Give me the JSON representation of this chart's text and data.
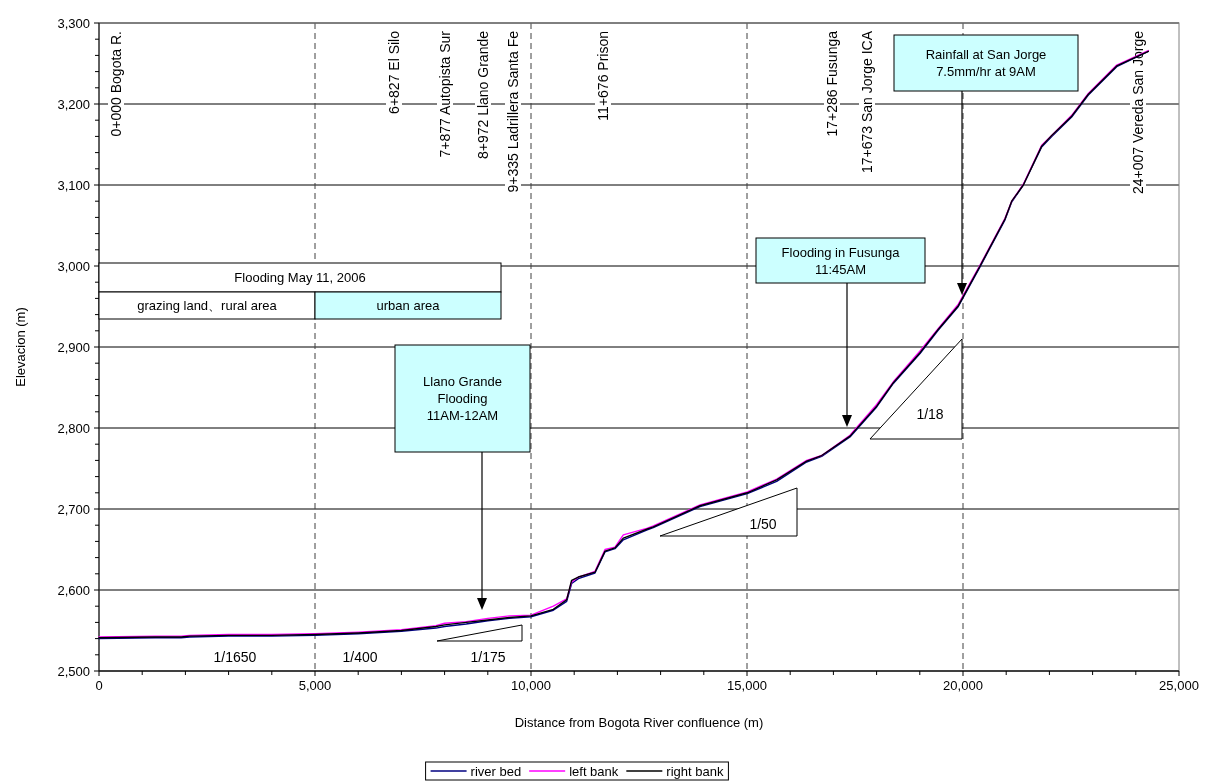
{
  "chart_data": {
    "type": "line",
    "xlabel": "Distance from Bogota River confluence (m)",
    "ylabel": "Elevacion (m)",
    "xlim": [
      0,
      25000
    ],
    "ylim": [
      2500,
      3300
    ],
    "xticks": [
      0,
      {
        "value": 5000,
        "label": "5,000"
      },
      {
        "value": 10000,
        "label": "10,000"
      },
      {
        "value": 15000,
        "label": "15,000"
      },
      {
        "value": 20000,
        "label": "20,000"
      },
      {
        "value": 25000,
        "label": "25,000"
      }
    ],
    "yticks": [
      {
        "value": 2500,
        "label": "2,500"
      },
      {
        "value": 2600,
        "label": "2,600"
      },
      {
        "value": 2700,
        "label": "2,700"
      },
      {
        "value": 2800,
        "label": "2,800"
      },
      {
        "value": 2900,
        "label": "2,900"
      },
      {
        "value": 3000,
        "label": "3,000"
      },
      {
        "value": 3100,
        "label": "3,100"
      },
      {
        "value": 3200,
        "label": "3,200"
      },
      {
        "value": 3300,
        "label": "3,300"
      }
    ],
    "grid": true,
    "legend": "bottom",
    "x": [
      0,
      1300,
      1750,
      1900,
      2100,
      3000,
      4000,
      5000,
      6000,
      7000,
      7800,
      8000,
      8500,
      9000,
      9500,
      10000,
      10517,
      10826,
      10941,
      11096,
      11481,
      11713,
      11944,
      12137,
      12677,
      12831,
      13912,
      15007,
      15687,
      16381,
      16728,
      17384,
      18002,
      18387,
      19005,
      19429,
      19892,
      20394,
      20972,
      21127,
      21396,
      21821,
      22053,
      22516,
      22901,
      23558,
      24289
    ],
    "series": [
      {
        "name": "river bed",
        "color": "#000080",
        "values": [
          2540,
          2541,
          2541,
          2541,
          2542,
          2543,
          2543,
          2544,
          2546,
          2549,
          2553,
          2555,
          2558,
          2562,
          2565,
          2567,
          2575,
          2586,
          2608,
          2614,
          2621,
          2647,
          2651,
          2662,
          2674,
          2677,
          2703,
          2719,
          2734,
          2758,
          2765,
          2789,
          2826,
          2855,
          2892,
          2921,
          2950,
          2999,
          3057,
          3079,
          3100,
          3147,
          3160,
          3184,
          3211,
          3246,
          3265
        ]
      },
      {
        "name": "left bank",
        "color": "#ff00ff",
        "values": [
          2542,
          2543,
          2543,
          2543,
          2544,
          2545,
          2545,
          2546,
          2548,
          2551,
          2556,
          2559,
          2561,
          2565,
          2568,
          2569,
          2580,
          2589,
          2610,
          2616,
          2623,
          2650,
          2653,
          2668,
          2676,
          2679,
          2705,
          2721,
          2737,
          2760,
          2766,
          2791,
          2829,
          2857,
          2895,
          2923,
          2953,
          3001,
          3059,
          3080,
          3101,
          3149,
          3161,
          3186,
          3213,
          3248,
          3266
        ]
      },
      {
        "name": "right bank",
        "color": "#000000",
        "values": [
          2541,
          2542,
          2542,
          2542,
          2543,
          2544,
          2544,
          2545,
          2547,
          2550,
          2555,
          2557,
          2560,
          2563,
          2566,
          2568,
          2576,
          2588,
          2612,
          2616,
          2622,
          2648,
          2652,
          2664,
          2675,
          2678,
          2704,
          2720,
          2736,
          2759,
          2766,
          2790,
          2827,
          2856,
          2893,
          2922,
          2951,
          3000,
          3058,
          3080,
          3100,
          3148,
          3161,
          3185,
          3212,
          3247,
          3265
        ]
      }
    ],
    "annotations": [
      "0+000 Bogota R.",
      "6+827 El Silo",
      "7+877 Autopista Sur",
      "8+972 Llano Grande",
      "9+335 Ladrillera Santa Fe",
      "11+676 Prison",
      "17+286 Fusunga",
      "17+673 San Jorge ICA",
      "24+007 Vereda San Jorge",
      "Llano Grande\nFlooding\n11AM-12AM",
      "Flooding in Fusunga\n11:45AM",
      "Rainfall at San Jorge\n7.5mm/hr at 9AM",
      "Flooding May 11, 2006",
      "grazing land、rural area",
      "urban area",
      "1/1650",
      "1/400",
      "1/175",
      "1/50",
      "1/18"
    ]
  }
}
